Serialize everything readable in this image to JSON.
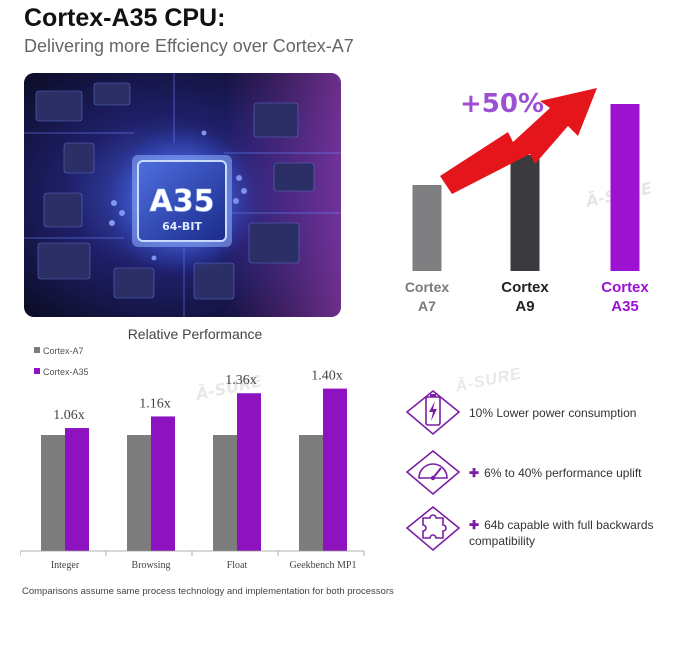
{
  "header": {
    "title": "Cortex-A35 CPU:",
    "subtitle": "Delivering more Effciency over Cortex-A7"
  },
  "chip": {
    "label": "A35",
    "sublabel": "64-BIT"
  },
  "watermark": "Ā-SURE",
  "colors": {
    "a7": "#7f7e80",
    "a9": "#3b3a3e",
    "a35": "#9c12d0",
    "gray_bar": "#7d7d7d",
    "purple_bar": "#8e13c0",
    "arrow": "#e5161b",
    "icon": "#7b1fa2"
  },
  "chart_data": [
    {
      "type": "bar",
      "categories": [
        "Cortex A7",
        "Cortex A9",
        "Cortex A35"
      ],
      "category_lines": [
        [
          "Cortex",
          "A7"
        ],
        [
          "Cortex",
          "A9"
        ],
        [
          "Cortex",
          "A35"
        ]
      ],
      "values": [
        86,
        116,
        167
      ],
      "ylim": [
        0,
        170
      ],
      "annotation": "+50%"
    },
    {
      "type": "bar",
      "title": "Relative Performance",
      "categories": [
        "Integer",
        "Browsing",
        "Float",
        "Geekbench MP1"
      ],
      "series": [
        {
          "name": "Cortex-A7",
          "values": [
            1.0,
            1.0,
            1.0,
            1.0
          ]
        },
        {
          "name": "Cortex-A35",
          "values": [
            1.06,
            1.16,
            1.36,
            1.4
          ]
        }
      ],
      "data_labels": [
        "1.06x",
        "1.16x",
        "1.36x",
        "1.40x"
      ],
      "ylim": [
        0,
        1.45
      ],
      "legend": "top-left"
    }
  ],
  "features": [
    {
      "icon": "battery-icon",
      "plus": "",
      "text": "10% Lower power consumption"
    },
    {
      "icon": "speedometer-icon",
      "plus": "✚",
      "text": "6% to 40% performance uplift"
    },
    {
      "icon": "puzzle-icon",
      "plus": "✚",
      "text": "64b capable with full backwards compatibility"
    }
  ],
  "footnote": "Comparisons assume same process technology and implementation for both processors"
}
